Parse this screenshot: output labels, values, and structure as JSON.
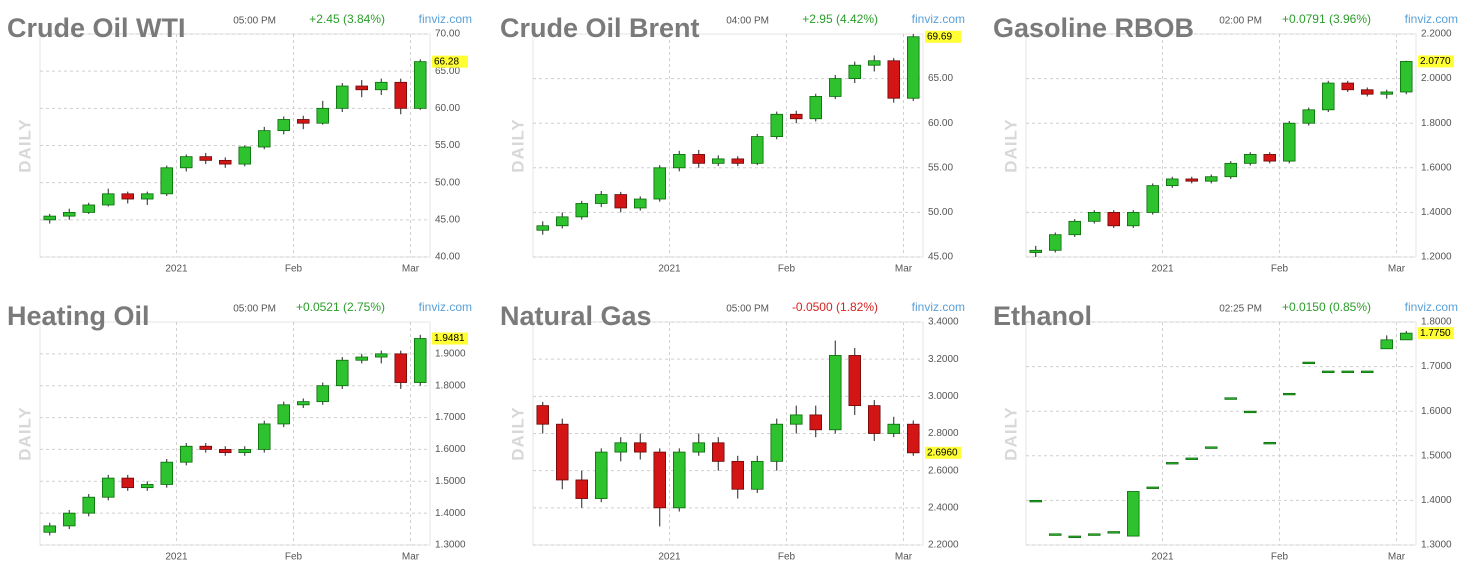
{
  "chart_data": [
    {
      "type": "candlestick",
      "title": "Crude Oil WTI",
      "time": "05:00 PM",
      "change": "+2.45 (3.84%)",
      "change_color": "#2a9d2a",
      "source": "finviz.com",
      "side_label": "DAILY",
      "ohlc": [
        [
          45,
          45.8,
          44.5,
          45.5
        ],
        [
          45.5,
          46.5,
          45,
          46
        ],
        [
          46,
          47.3,
          45.8,
          47
        ],
        [
          47,
          49.2,
          46.8,
          48.5
        ],
        [
          48.5,
          48.8,
          47.2,
          47.8
        ],
        [
          47.8,
          48.8,
          47,
          48.5
        ],
        [
          48.5,
          52.3,
          48.2,
          52
        ],
        [
          52,
          53.8,
          51.5,
          53.5
        ],
        [
          53.5,
          54,
          52.5,
          53
        ],
        [
          53,
          53.4,
          52,
          52.5
        ],
        [
          52.5,
          55,
          52.2,
          54.8
        ],
        [
          54.8,
          57.5,
          54.5,
          57
        ],
        [
          57,
          58.9,
          56.5,
          58.5
        ],
        [
          58.5,
          59,
          57.2,
          58
        ],
        [
          58,
          61,
          57.8,
          60
        ],
        [
          60,
          63.4,
          59.5,
          63
        ],
        [
          63,
          63.8,
          61.5,
          62.5
        ],
        [
          62.5,
          64,
          61.8,
          63.5
        ],
        [
          63.5,
          64,
          59.2,
          60
        ],
        [
          60,
          66.6,
          59.8,
          66.28
        ]
      ],
      "last_label": "66.28",
      "ylim": [
        40,
        70
      ],
      "yticks": [
        {
          "value": 40,
          "label": "40.00"
        },
        {
          "value": 45,
          "label": "45.00"
        },
        {
          "value": 50,
          "label": "50.00"
        },
        {
          "value": 55,
          "label": "55.00"
        },
        {
          "value": 60,
          "label": "60.00"
        },
        {
          "value": 65,
          "label": "65.00"
        },
        {
          "value": 70,
          "label": "70.00"
        }
      ],
      "xticks": [
        {
          "value": 6.5,
          "label": "2021"
        },
        {
          "value": 12.5,
          "label": "Feb"
        },
        {
          "value": 18.5,
          "label": "Mar"
        }
      ]
    },
    {
      "type": "candlestick",
      "title": "Crude Oil Brent",
      "time": "04:00 PM",
      "change": "+2.95 (4.42%)",
      "change_color": "#2a9d2a",
      "source": "finviz.com",
      "side_label": "DAILY",
      "ohlc": [
        [
          48,
          49,
          47.5,
          48.5
        ],
        [
          48.5,
          50,
          48.2,
          49.5
        ],
        [
          49.5,
          51.3,
          49.2,
          51
        ],
        [
          51,
          52.4,
          50.6,
          52
        ],
        [
          52,
          52.3,
          50,
          50.5
        ],
        [
          50.5,
          51.8,
          50.2,
          51.5
        ],
        [
          51.5,
          55.3,
          51.2,
          55
        ],
        [
          55,
          56.9,
          54.6,
          56.5
        ],
        [
          56.5,
          57,
          55,
          55.5
        ],
        [
          55.5,
          56.4,
          55.2,
          56
        ],
        [
          56,
          56.3,
          55.2,
          55.5
        ],
        [
          55.5,
          58.8,
          55.3,
          58.5
        ],
        [
          58.5,
          61.3,
          58.2,
          61
        ],
        [
          61,
          61.4,
          60,
          60.5
        ],
        [
          60.5,
          63.3,
          60.2,
          63
        ],
        [
          63,
          65.4,
          62.7,
          65
        ],
        [
          65,
          66.9,
          64.5,
          66.5
        ],
        [
          66.5,
          67.6,
          65.8,
          67
        ],
        [
          67,
          67.3,
          62.3,
          62.8
        ],
        [
          62.8,
          70,
          62.5,
          69.69
        ]
      ],
      "last_label": "69.69",
      "ylim": [
        45,
        70
      ],
      "yticks": [
        {
          "value": 45,
          "label": "45.00"
        },
        {
          "value": 50,
          "label": "50.00"
        },
        {
          "value": 55,
          "label": "55.00"
        },
        {
          "value": 60,
          "label": "60.00"
        },
        {
          "value": 65,
          "label": "65.00"
        }
      ],
      "xticks": [
        {
          "value": 6.5,
          "label": "2021"
        },
        {
          "value": 12.5,
          "label": "Feb"
        },
        {
          "value": 18.5,
          "label": "Mar"
        }
      ]
    },
    {
      "type": "candlestick",
      "title": "Gasoline RBOB",
      "time": "02:00 PM",
      "change": "+0.0791 (3.96%)",
      "change_color": "#2a9d2a",
      "source": "finviz.com",
      "side_label": "DAILY",
      "ohlc": [
        [
          1.22,
          1.25,
          1.2,
          1.23
        ],
        [
          1.23,
          1.31,
          1.22,
          1.3
        ],
        [
          1.3,
          1.37,
          1.29,
          1.36
        ],
        [
          1.36,
          1.41,
          1.35,
          1.4
        ],
        [
          1.4,
          1.41,
          1.33,
          1.34
        ],
        [
          1.34,
          1.41,
          1.33,
          1.4
        ],
        [
          1.4,
          1.53,
          1.39,
          1.52
        ],
        [
          1.52,
          1.56,
          1.51,
          1.55
        ],
        [
          1.55,
          1.56,
          1.53,
          1.54
        ],
        [
          1.54,
          1.57,
          1.53,
          1.56
        ],
        [
          1.56,
          1.63,
          1.55,
          1.62
        ],
        [
          1.62,
          1.67,
          1.61,
          1.66
        ],
        [
          1.66,
          1.67,
          1.62,
          1.63
        ],
        [
          1.63,
          1.81,
          1.62,
          1.8
        ],
        [
          1.8,
          1.87,
          1.79,
          1.86
        ],
        [
          1.86,
          1.99,
          1.85,
          1.98
        ],
        [
          1.98,
          1.99,
          1.94,
          1.95
        ],
        [
          1.95,
          1.96,
          1.92,
          1.93
        ],
        [
          1.93,
          1.95,
          1.91,
          1.94
        ],
        [
          1.94,
          2.08,
          1.93,
          2.077
        ]
      ],
      "last_label": "2.0770",
      "ylim": [
        1.2,
        2.2
      ],
      "yticks": [
        {
          "value": 1.2,
          "label": "1.2000"
        },
        {
          "value": 1.4,
          "label": "1.4000"
        },
        {
          "value": 1.6,
          "label": "1.6000"
        },
        {
          "value": 1.8,
          "label": "1.8000"
        },
        {
          "value": 2.0,
          "label": "2.0000"
        },
        {
          "value": 2.2,
          "label": "2.2000"
        }
      ],
      "xticks": [
        {
          "value": 6.5,
          "label": "2021"
        },
        {
          "value": 12.5,
          "label": "Feb"
        },
        {
          "value": 18.5,
          "label": "Mar"
        }
      ]
    },
    {
      "type": "candlestick",
      "title": "Heating Oil",
      "time": "05:00 PM",
      "change": "+0.0521 (2.75%)",
      "change_color": "#2a9d2a",
      "source": "finviz.com",
      "side_label": "DAILY",
      "ohlc": [
        [
          1.34,
          1.37,
          1.33,
          1.36
        ],
        [
          1.36,
          1.41,
          1.35,
          1.4
        ],
        [
          1.4,
          1.46,
          1.39,
          1.45
        ],
        [
          1.45,
          1.52,
          1.44,
          1.51
        ],
        [
          1.51,
          1.52,
          1.47,
          1.48
        ],
        [
          1.48,
          1.5,
          1.47,
          1.49
        ],
        [
          1.49,
          1.57,
          1.48,
          1.56
        ],
        [
          1.56,
          1.62,
          1.55,
          1.61
        ],
        [
          1.61,
          1.62,
          1.59,
          1.6
        ],
        [
          1.6,
          1.61,
          1.58,
          1.59
        ],
        [
          1.59,
          1.61,
          1.58,
          1.6
        ],
        [
          1.6,
          1.69,
          1.59,
          1.68
        ],
        [
          1.68,
          1.75,
          1.67,
          1.74
        ],
        [
          1.74,
          1.76,
          1.73,
          1.75
        ],
        [
          1.75,
          1.81,
          1.74,
          1.8
        ],
        [
          1.8,
          1.89,
          1.79,
          1.88
        ],
        [
          1.88,
          1.9,
          1.87,
          1.89
        ],
        [
          1.89,
          1.91,
          1.87,
          1.9
        ],
        [
          1.9,
          1.91,
          1.79,
          1.81
        ],
        [
          1.81,
          1.96,
          1.8,
          1.9481
        ]
      ],
      "last_label": "1.9481",
      "ylim": [
        1.3,
        2.0
      ],
      "yticks": [
        {
          "value": 1.3,
          "label": "1.3000"
        },
        {
          "value": 1.4,
          "label": "1.4000"
        },
        {
          "value": 1.5,
          "label": "1.5000"
        },
        {
          "value": 1.6,
          "label": "1.6000"
        },
        {
          "value": 1.7,
          "label": "1.7000"
        },
        {
          "value": 1.8,
          "label": "1.8000"
        },
        {
          "value": 1.9,
          "label": "1.9000"
        }
      ],
      "xticks": [
        {
          "value": 6.5,
          "label": "2021"
        },
        {
          "value": 12.5,
          "label": "Feb"
        },
        {
          "value": 18.5,
          "label": "Mar"
        }
      ]
    },
    {
      "type": "candlestick",
      "title": "Natural Gas",
      "time": "05:00 PM",
      "change": "-0.0500 (1.82%)",
      "change_color": "#d62020",
      "source": "finviz.com",
      "side_label": "DAILY",
      "ohlc": [
        [
          2.95,
          2.97,
          2.8,
          2.85
        ],
        [
          2.85,
          2.88,
          2.5,
          2.55
        ],
        [
          2.55,
          2.6,
          2.4,
          2.45
        ],
        [
          2.45,
          2.72,
          2.43,
          2.7
        ],
        [
          2.7,
          2.78,
          2.65,
          2.75
        ],
        [
          2.75,
          2.8,
          2.66,
          2.7
        ],
        [
          2.7,
          2.72,
          2.3,
          2.4
        ],
        [
          2.4,
          2.72,
          2.38,
          2.7
        ],
        [
          2.7,
          2.8,
          2.68,
          2.75
        ],
        [
          2.75,
          2.78,
          2.6,
          2.65
        ],
        [
          2.65,
          2.68,
          2.45,
          2.5
        ],
        [
          2.5,
          2.68,
          2.48,
          2.65
        ],
        [
          2.65,
          2.88,
          2.6,
          2.85
        ],
        [
          2.85,
          2.95,
          2.8,
          2.9
        ],
        [
          2.9,
          2.95,
          2.78,
          2.82
        ],
        [
          2.82,
          3.3,
          2.8,
          3.22
        ],
        [
          3.22,
          3.26,
          2.9,
          2.95
        ],
        [
          2.95,
          2.98,
          2.76,
          2.8
        ],
        [
          2.8,
          2.89,
          2.78,
          2.85
        ],
        [
          2.85,
          2.87,
          2.68,
          2.696
        ]
      ],
      "last_label": "2.6960",
      "ylim": [
        2.2,
        3.4
      ],
      "yticks": [
        {
          "value": 2.2,
          "label": "2.2000"
        },
        {
          "value": 2.4,
          "label": "2.4000"
        },
        {
          "value": 2.6,
          "label": "2.6000"
        },
        {
          "value": 2.8,
          "label": "2.8000"
        },
        {
          "value": 3.0,
          "label": "3.0000"
        },
        {
          "value": 3.2,
          "label": "3.2000"
        },
        {
          "value": 3.4,
          "label": "3.4000"
        }
      ],
      "xticks": [
        {
          "value": 6.5,
          "label": "2021"
        },
        {
          "value": 12.5,
          "label": "Feb"
        },
        {
          "value": 18.5,
          "label": "Mar"
        }
      ]
    },
    {
      "type": "candlestick",
      "title": "Ethanol",
      "time": "02:25 PM",
      "change": "+0.0150 (0.85%)",
      "change_color": "#2a9d2a",
      "source": "finviz.com",
      "side_label": "DAILY",
      "ohlc": [
        [
          1.4,
          1.4,
          1.4,
          1.4
        ],
        [
          1.325,
          1.325,
          1.325,
          1.325
        ],
        [
          1.32,
          1.32,
          1.32,
          1.32
        ],
        [
          1.325,
          1.325,
          1.325,
          1.325
        ],
        [
          1.33,
          1.33,
          1.33,
          1.33
        ],
        [
          1.32,
          1.42,
          1.32,
          1.42
        ],
        [
          1.43,
          1.43,
          1.43,
          1.43
        ],
        [
          1.485,
          1.485,
          1.485,
          1.485
        ],
        [
          1.495,
          1.495,
          1.495,
          1.495
        ],
        [
          1.52,
          1.52,
          1.52,
          1.52
        ],
        [
          1.63,
          1.63,
          1.63,
          1.63
        ],
        [
          1.6,
          1.6,
          1.6,
          1.6
        ],
        [
          1.53,
          1.53,
          1.53,
          1.53
        ],
        [
          1.64,
          1.64,
          1.64,
          1.64
        ],
        [
          1.71,
          1.71,
          1.71,
          1.71
        ],
        [
          1.69,
          1.69,
          1.69,
          1.69
        ],
        [
          1.69,
          1.69,
          1.69,
          1.69
        ],
        [
          1.69,
          1.69,
          1.69,
          1.69
        ],
        [
          1.74,
          1.77,
          1.74,
          1.76
        ],
        [
          1.76,
          1.78,
          1.76,
          1.775
        ]
      ],
      "last_label": "1.7750",
      "ylim": [
        1.3,
        1.8
      ],
      "yticks": [
        {
          "value": 1.3,
          "label": "1.3000"
        },
        {
          "value": 1.4,
          "label": "1.4000"
        },
        {
          "value": 1.5,
          "label": "1.5000"
        },
        {
          "value": 1.6,
          "label": "1.6000"
        },
        {
          "value": 1.7,
          "label": "1.7000"
        },
        {
          "value": 1.8,
          "label": "1.8000"
        }
      ],
      "xticks": [
        {
          "value": 6.5,
          "label": "2021"
        },
        {
          "value": 12.5,
          "label": "Feb"
        },
        {
          "value": 18.5,
          "label": "Mar"
        }
      ]
    }
  ]
}
